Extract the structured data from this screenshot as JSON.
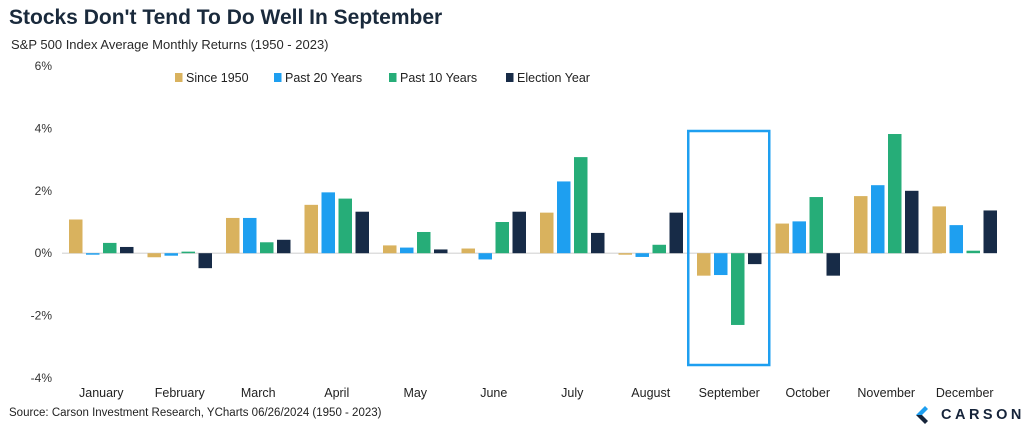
{
  "header": {
    "title": "Stocks Don't Tend To Do Well In September",
    "subtitle": "S&P 500 Index Average Monthly Returns (1950 - 2023)"
  },
  "footer": {
    "source": "Source: Carson Investment Research, YCharts 06/26/2024 (1950 - 2023)",
    "brand": "CARSON",
    "logo_icon": "carson-logo-icon"
  },
  "chart_data": {
    "type": "bar",
    "categories": [
      "January",
      "February",
      "March",
      "April",
      "May",
      "June",
      "July",
      "August",
      "September",
      "October",
      "November",
      "December"
    ],
    "series": [
      {
        "name": "Since 1950",
        "color": "#d9b25e",
        "values": [
          1.08,
          -0.13,
          1.13,
          1.55,
          0.25,
          0.15,
          1.3,
          -0.03,
          -0.72,
          0.95,
          1.83,
          1.5
        ]
      },
      {
        "name": "Past 20 Years",
        "color": "#1e9ff0",
        "values": [
          -0.03,
          -0.08,
          1.13,
          1.95,
          0.18,
          -0.2,
          2.3,
          -0.12,
          -0.7,
          1.02,
          2.18,
          0.9
        ]
      },
      {
        "name": "Past 10 Years",
        "color": "#26ad78",
        "values": [
          0.33,
          0.05,
          0.35,
          1.75,
          0.68,
          1.0,
          3.08,
          0.27,
          -2.3,
          1.8,
          3.82,
          0.08
        ]
      },
      {
        "name": "Election Year",
        "color": "#172b47",
        "values": [
          0.2,
          -0.48,
          0.43,
          1.33,
          0.12,
          1.33,
          0.65,
          1.3,
          -0.35,
          -0.72,
          2.0,
          1.37
        ]
      }
    ],
    "yticks": [
      "6%",
      "4%",
      "2%",
      "0%",
      "-2%",
      "-4%"
    ],
    "ylim": [
      -4,
      6
    ],
    "xlabel": "",
    "ylabel": "",
    "grid": false,
    "legend_position": "top",
    "highlight": {
      "category": "September",
      "color": "#1e9ff0"
    }
  }
}
